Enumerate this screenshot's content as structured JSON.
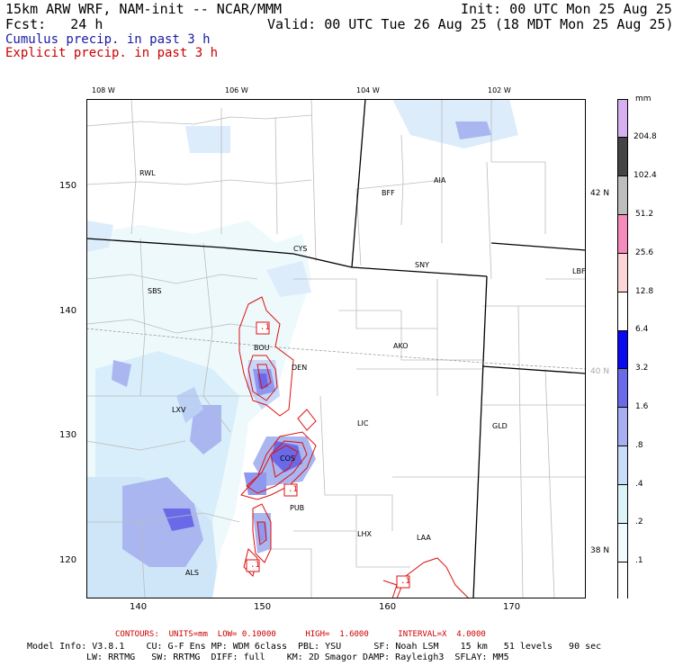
{
  "header": {
    "model": "15km ARW WRF, NAM-init -- NCAR/MMM",
    "fcst": "Fcst:   24 h",
    "init": "Init: 00 UTC Mon 25 Aug 25",
    "valid": "Valid: 00 UTC Tue 26 Aug 25 (18 MDT Mon 25 Aug 25)",
    "cumulus": "Cumulus precip. in past 3 h",
    "explicit": "Explicit precip. in past 3 h"
  },
  "colors": {
    "cumulus_text": "#1a1aa0",
    "explicit_text": "#cc0000",
    "contour": "#dd1111"
  },
  "top_axis": [
    "108 W",
    "106 W",
    "104 W",
    "102 W"
  ],
  "left_axis": [
    "150",
    "140",
    "130",
    "120"
  ],
  "bottom_axis": [
    "140",
    "150",
    "160",
    "170"
  ],
  "lat_labels": [
    "42 N",
    "40 N",
    "38 N"
  ],
  "stations": [
    "RWL",
    "BFF",
    "AIA",
    "CYS",
    "SNY",
    "LBF",
    "SBS",
    "BOU",
    "AKO",
    "DEN",
    "LXV",
    "LIC",
    "GLD",
    "COS",
    "PUB",
    "LHX",
    "LAA",
    "ALS"
  ],
  "contour_labels": [
    ".1",
    ".1",
    ".1",
    ".1"
  ],
  "colorbar": {
    "unit": "mm",
    "levels": [
      "204.8",
      "102.4",
      "51.2",
      "25.6",
      "12.8",
      "6.4",
      "3.2",
      "1.6",
      ".8",
      ".4",
      ".2",
      ".1"
    ],
    "colors": [
      "#d7b0f0",
      "#444444",
      "#bdbdbd",
      "#f58bbb",
      "#fcd6d6",
      "#ffffff",
      "#0a0aee",
      "#6a6ae8",
      "#a7aef2",
      "#c9dcfa",
      "#dcf4f8",
      "#f0fbfd",
      "#ffffff"
    ]
  },
  "footer": {
    "contours": "CONTOURS:  UNITS=mm  LOW= 0.10000      HIGH=  1.6000      INTERVAL=X  4.0000",
    "line1": "Model Info: V3.8.1    CU: G-F Ens MP: WDM 6class  PBL: YSU      SF: Noah LSM    15 km   51 levels   90 sec",
    "line2": "LW: RRTMG   SW: RRTMG  DIFF: full    KM: 2D Smagor DAMP: Rayleigh3  SFLAY: MM5"
  }
}
